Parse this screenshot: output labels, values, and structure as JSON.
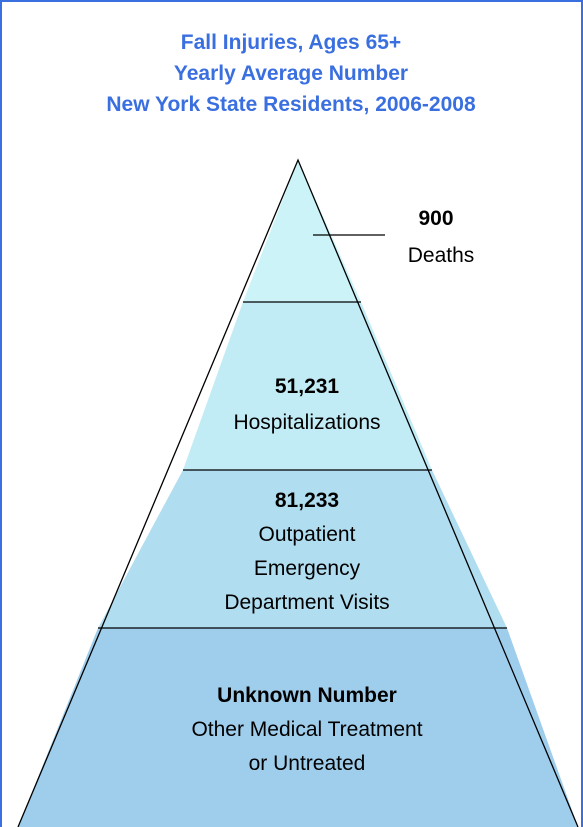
{
  "title": [
    "Fall Injuries, Ages 65+",
    "Yearly Average Number",
    "New York State Residents, 2006-2008"
  ],
  "levels": [
    {
      "count": "900",
      "label": [
        "Deaths"
      ]
    },
    {
      "count": "51,231",
      "label": [
        "Hospitalizations"
      ]
    },
    {
      "count": "81,233",
      "label": [
        "Outpatient",
        "Emergency",
        "Department Visits"
      ]
    },
    {
      "count": "Unknown Number",
      "label": [
        "Other Medical Treatment",
        "or Untreated"
      ]
    }
  ]
}
